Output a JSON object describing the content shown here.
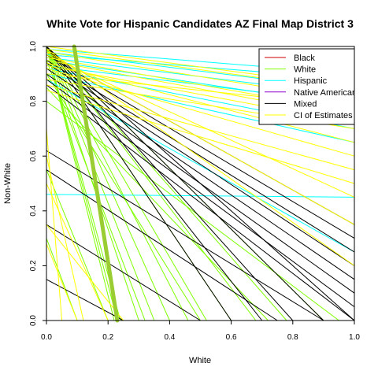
{
  "chart_data": {
    "type": "line",
    "title": "White Vote for Hispanic Candidates AZ Final Map District 3",
    "xlabel": "White",
    "ylabel": "Non-White",
    "xlim": [
      0,
      1
    ],
    "ylim": [
      0,
      1
    ],
    "x_ticks": [
      "0.0",
      "0.2",
      "0.4",
      "0.6",
      "0.8",
      "1.0"
    ],
    "y_ticks": [
      "0.0",
      "0.2",
      "0.4",
      "0.6",
      "0.8",
      "1.0"
    ],
    "grid": false,
    "legend_position": "top-right",
    "legend": [
      {
        "label": "Black",
        "color": "#cd0000"
      },
      {
        "label": "White",
        "color": "#7fff00"
      },
      {
        "label": "Hispanic",
        "color": "#00ffff"
      },
      {
        "label": "Native American",
        "color": "#9400d3"
      },
      {
        "label": "Mixed",
        "color": "#000000"
      },
      {
        "label": "CI of Estimates",
        "color": "#ffff00"
      }
    ],
    "series": [
      {
        "name": "White",
        "color": "#7fff00",
        "lines": [
          {
            "intercept": 1.0,
            "x_at_zero": 0.23
          },
          {
            "intercept": 1.0,
            "x_at_zero": 0.22
          },
          {
            "intercept": 1.0,
            "x_at_zero": 0.24
          },
          {
            "intercept": 1.0,
            "x_at_zero": 0.3
          },
          {
            "intercept": 1.0,
            "x_at_zero": 0.35
          },
          {
            "intercept": 1.0,
            "x_at_zero": 0.4
          },
          {
            "intercept": 1.0,
            "x_at_zero": 0.46
          },
          {
            "intercept": 1.0,
            "x_at_zero": 0.52
          },
          {
            "intercept": 1.0,
            "x_at_zero": 0.6
          },
          {
            "intercept": 1.0,
            "x_at_zero": 0.68
          },
          {
            "intercept": 1.0,
            "x_at_zero": 0.78
          },
          {
            "intercept": 1.0,
            "x_at_zero": 0.9
          },
          {
            "intercept": 0.95,
            "x_at_zero": 0.32
          },
          {
            "intercept": 0.9,
            "x_at_zero": 0.5
          },
          {
            "intercept": 0.85,
            "x_at_zero": 0.72
          },
          {
            "intercept": 0.8,
            "x_at_zero": 0.95
          },
          {
            "intercept": 0.3,
            "x_at_zero": 0.1
          },
          {
            "intercept": 0.55,
            "x_at_zero": 0.2
          }
        ]
      },
      {
        "name": "Hispanic",
        "color": "#00ffff",
        "lines": [
          {
            "intercept": 0.99,
            "x_at_one_y": 0.9
          },
          {
            "intercept": 0.97,
            "x_at_one_y": 0.88
          },
          {
            "intercept": 0.98,
            "x_at_one_y": 0.84
          },
          {
            "intercept": 0.96,
            "x_at_one_y": 0.82
          },
          {
            "intercept": 0.95,
            "x_at_one_y": 0.78
          },
          {
            "intercept": 0.93,
            "x_at_one_y": 0.79
          },
          {
            "intercept": 0.92,
            "x_at_one_y": 0.7
          },
          {
            "intercept": 0.9,
            "x_at_one_y": 0.65
          },
          {
            "intercept": 0.46,
            "x_at_one_y": 0.45
          },
          {
            "intercept": 0.88,
            "x_at_one_y": 0.25
          }
        ]
      },
      {
        "name": "Mixed",
        "color": "#000000",
        "lines": [
          {
            "intercept": 1.0,
            "x_at_zero": 0.6
          },
          {
            "intercept": 1.0,
            "x_at_zero": 0.7
          },
          {
            "intercept": 1.0,
            "x_at_zero": 0.8
          },
          {
            "intercept": 1.0,
            "x_at_zero": 0.9
          },
          {
            "intercept": 1.0,
            "x_at_zero": 1.0
          },
          {
            "intercept": 0.98,
            "x_at_one_y": 0.35
          },
          {
            "intercept": 0.97,
            "x_at_one_y": 0.3
          },
          {
            "intercept": 0.95,
            "x_at_one_y": 0.25
          },
          {
            "intercept": 0.94,
            "x_at_one_y": 0.2
          },
          {
            "intercept": 0.92,
            "x_at_one_y": 0.15
          },
          {
            "intercept": 0.9,
            "x_at_one_y": 0.1
          },
          {
            "intercept": 0.88,
            "x_at_one_y": 0.05
          },
          {
            "intercept": 0.86,
            "x_at_one_y": 0.0
          },
          {
            "intercept": 0.62,
            "x_at_zero": 0.9
          },
          {
            "intercept": 0.55,
            "x_at_zero": 0.75
          },
          {
            "intercept": 0.35,
            "x_at_zero": 0.5
          },
          {
            "intercept": 0.15,
            "x_at_zero": 0.25
          }
        ]
      },
      {
        "name": "CI of Estimates",
        "color": "#ffff00",
        "lines": [
          {
            "intercept": 1.0,
            "x_at_one_y": 0.85
          },
          {
            "intercept": 0.99,
            "x_at_one_y": 0.84
          },
          {
            "intercept": 0.98,
            "x_at_one_y": 0.8
          },
          {
            "intercept": 0.96,
            "x_at_one_y": 0.76
          },
          {
            "intercept": 0.95,
            "x_at_one_y": 0.74
          },
          {
            "intercept": 0.93,
            "x_at_one_y": 0.72
          },
          {
            "intercept": 0.92,
            "x_at_one_y": 0.6
          },
          {
            "intercept": 0.9,
            "x_at_one_y": 0.78
          },
          {
            "intercept": 0.88,
            "x_at_one_y": 0.7
          },
          {
            "intercept": 0.86,
            "x_at_one_y": 0.55
          },
          {
            "intercept": 0.84,
            "x_at_one_y": 0.5
          },
          {
            "intercept": 0.99,
            "x_at_one_y": 0.2
          },
          {
            "intercept": 0.98,
            "x_at_one_y": 0.35
          },
          {
            "intercept": 0.97,
            "x_at_one_y": 0.45
          },
          {
            "intercept": 0.94,
            "x_at_one_y": 0.65
          },
          {
            "intercept": 0.6,
            "x_at_zero": 0.12
          },
          {
            "intercept": 0.5,
            "x_at_zero": 0.2
          },
          {
            "intercept": 0.35,
            "x_at_zero": 0.25
          },
          {
            "intercept": 0.28,
            "x_at_zero": 0.1
          },
          {
            "intercept": 0.7,
            "x_at_zero": 0.05
          }
        ]
      }
    ],
    "highlighted_white_line": {
      "from": [
        0.09,
        1.0
      ],
      "to": [
        0.23,
        0.0
      ]
    }
  }
}
